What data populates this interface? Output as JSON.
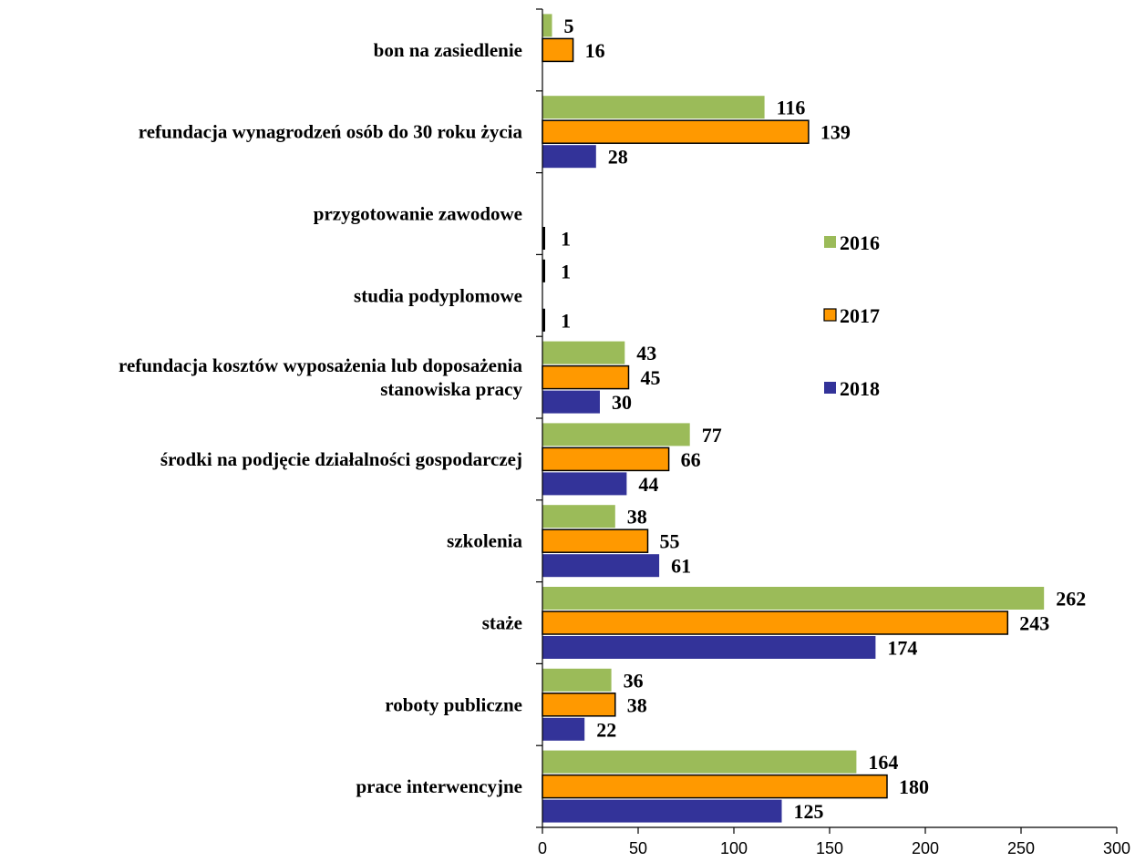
{
  "chart_data": {
    "type": "bar",
    "orientation": "horizontal",
    "categories": [
      "bon na zasiedlenie",
      "refundacja wynagrodzeń osób do 30 roku życia",
      "przygotowanie zawodowe",
      "studia podyplomowe",
      [
        "refundacja kosztów wyposażenia lub doposażenia",
        "stanowiska pracy"
      ],
      "środki na podjęcie działalności gospodarczej",
      "szkolenia",
      "staże",
      "roboty publiczne",
      "prace interwencyjne"
    ],
    "series": [
      {
        "name": "2016",
        "color": "#9BBB59",
        "values": [
          5,
          116,
          null,
          1,
          43,
          77,
          38,
          262,
          36,
          164
        ]
      },
      {
        "name": "2017",
        "color": "#FF9900",
        "values": [
          16,
          139,
          null,
          null,
          45,
          66,
          55,
          243,
          38,
          180
        ]
      },
      {
        "name": "2018",
        "color": "#333399",
        "values": [
          null,
          28,
          1,
          1,
          30,
          44,
          61,
          174,
          22,
          125
        ]
      }
    ],
    "xlim": [
      0,
      300
    ],
    "xticks": [
      0,
      50,
      100,
      150,
      200,
      250,
      300
    ],
    "title": "",
    "xlabel": "",
    "ylabel": "",
    "grid": false,
    "legend": "right-middle"
  }
}
